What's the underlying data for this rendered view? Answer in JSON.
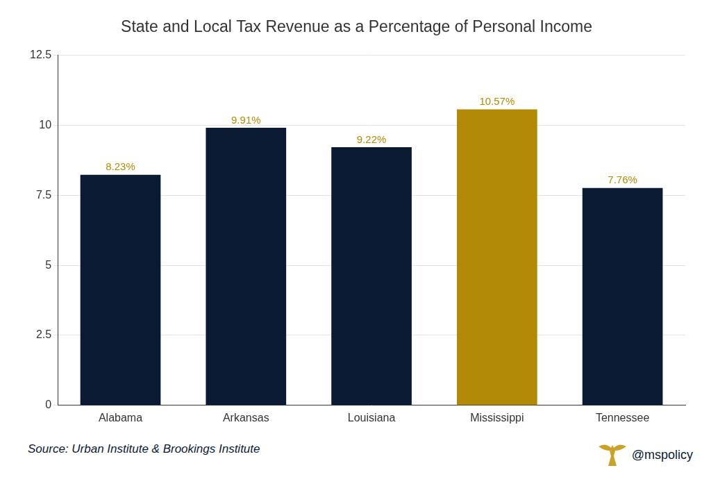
{
  "chart_data": {
    "type": "bar",
    "title": "State and Local Tax Revenue as a Percentage of Personal Income",
    "categories": [
      "Alabama",
      "Arkansas",
      "Louisiana",
      "Mississippi",
      "Tennessee"
    ],
    "values": [
      8.23,
      9.91,
      9.22,
      10.57,
      7.76
    ],
    "value_labels": [
      "8.23%",
      "9.91%",
      "9.22%",
      "10.57%",
      "7.76%"
    ],
    "colors": [
      "#0b1a33",
      "#0b1a33",
      "#0b1a33",
      "#b38a06",
      "#0b1a33"
    ],
    "ylim": [
      0,
      12.5
    ],
    "yticks": [
      0,
      2.5,
      5,
      7.5,
      10,
      12.5
    ],
    "grid": true,
    "data_labels": true,
    "source": "Source: Urban Institute & Brookings Institute",
    "credit": "@mspolicy"
  }
}
